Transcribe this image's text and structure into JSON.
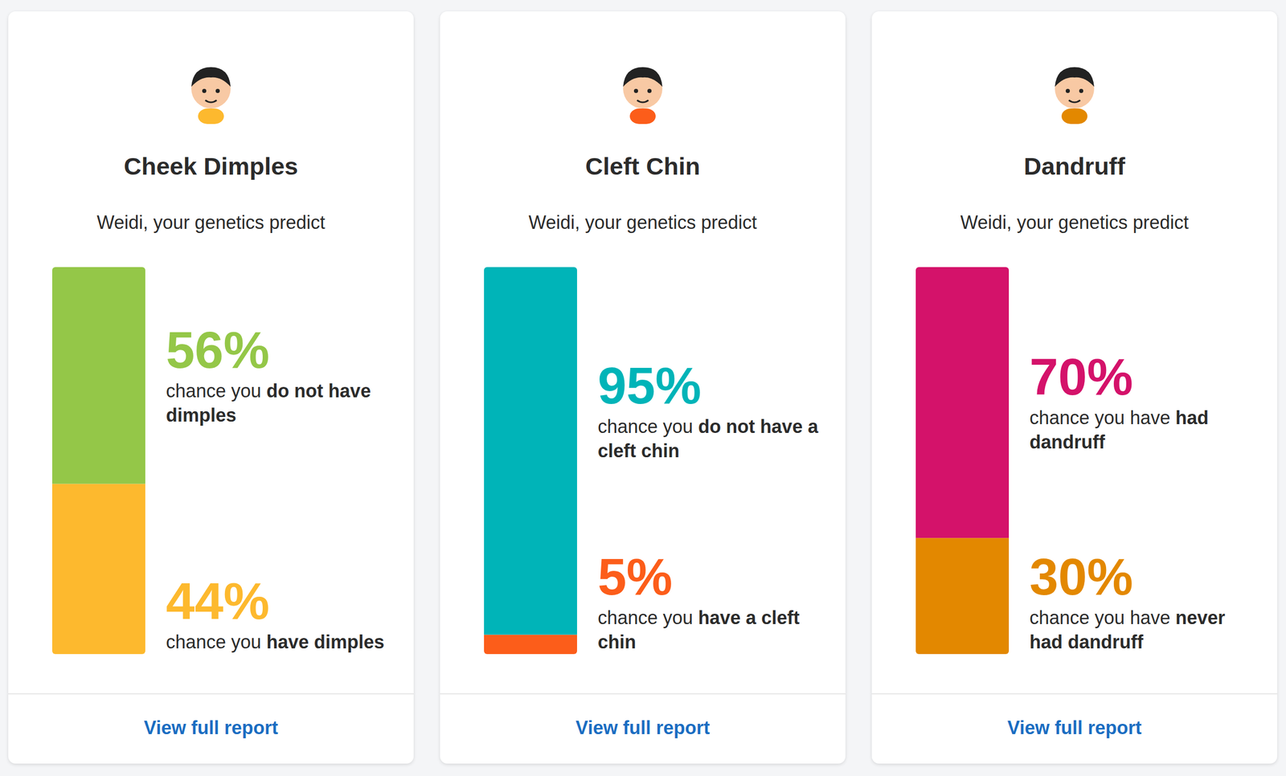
{
  "chart_data": [
    {
      "type": "bar",
      "stacked": true,
      "data_labels": true,
      "tick_labels": false,
      "ylim": [
        0,
        100
      ],
      "title": "Cheek Dimples",
      "subtitle": "Weidi, your genetics predict",
      "link": "View full report",
      "series": [
        {
          "name": "chance you do not have dimples",
          "emphasis": "do not have dimples",
          "color": "#94c748",
          "values": [
            56
          ],
          "value_labels": [
            "56%"
          ]
        },
        {
          "name": "chance you have dimples",
          "emphasis": "have dimples",
          "color": "#fdb92e",
          "values": [
            44
          ],
          "value_labels": [
            "44%"
          ]
        }
      ]
    },
    {
      "type": "bar",
      "stacked": true,
      "data_labels": true,
      "tick_labels": false,
      "ylim": [
        0,
        100
      ],
      "title": "Cleft Chin",
      "subtitle": "Weidi, your genetics predict",
      "link": "View full report",
      "series": [
        {
          "name": "chance you do not have a cleft chin",
          "emphasis": "do not have a cleft chin",
          "color": "#00b4b8",
          "values": [
            95
          ],
          "value_labels": [
            "95%"
          ]
        },
        {
          "name": "chance you have a cleft chin",
          "emphasis": "have a cleft chin",
          "color": "#fc5d1a",
          "values": [
            5
          ],
          "value_labels": [
            "5%"
          ]
        }
      ]
    },
    {
      "type": "bar",
      "stacked": true,
      "data_labels": true,
      "tick_labels": false,
      "ylim": [
        0,
        100
      ],
      "title": "Dandruff",
      "subtitle": "Weidi, your genetics predict",
      "link": "View full report",
      "series": [
        {
          "name": "chance you have had dandruff",
          "emphasis": "had dandruff",
          "color": "#d4126a",
          "values": [
            70
          ],
          "value_labels": [
            "70%"
          ]
        },
        {
          "name": "chance you have never had dandruff",
          "emphasis": "never had dandruff",
          "color": "#e38800",
          "values": [
            30
          ],
          "value_labels": [
            "30%"
          ]
        }
      ]
    }
  ]
}
